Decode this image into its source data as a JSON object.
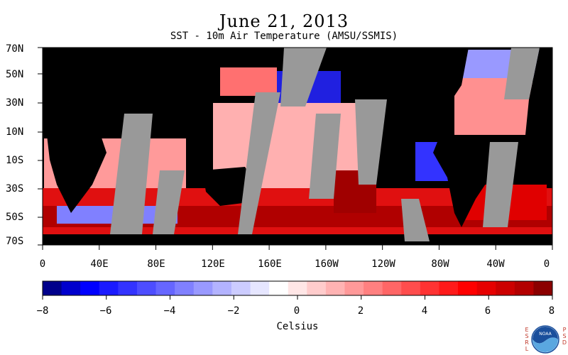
{
  "title": "June 21, 2013",
  "subtitle": "SST - 10m Air Temperature (AMSU/SSMIS)",
  "latitude_labels": [
    "70N",
    "50N",
    "30N",
    "10N",
    "10S",
    "30S",
    "50S",
    "70S"
  ],
  "longitude_labels": [
    "0",
    "40E",
    "80E",
    "120E",
    "160E",
    "160W",
    "120W",
    "80W",
    "40W",
    "0"
  ],
  "colorbar": {
    "tick_labels": [
      "−8",
      "−6",
      "−4",
      "−2",
      "0",
      "2",
      "4",
      "6",
      "8"
    ],
    "min": -8,
    "max": 8,
    "unit_label": "Celsius",
    "colors": [
      "#00008b",
      "#0000cd",
      "#0000ff",
      "#1a1aff",
      "#3333ff",
      "#4d4dff",
      "#6666ff",
      "#8080ff",
      "#9999ff",
      "#b3b3ff",
      "#ccccff",
      "#e6e6ff",
      "#ffffff",
      "#ffe6e6",
      "#ffcccc",
      "#ffb3b3",
      "#ff9999",
      "#ff8080",
      "#ff6666",
      "#ff4d4d",
      "#ff3333",
      "#ff1a1a",
      "#ff0000",
      "#e60000",
      "#cc0000",
      "#b30000",
      "#8b0000"
    ]
  },
  "legend_colors": {
    "land": "#000000",
    "missing": "#999999"
  },
  "logo": {
    "left_text": "ESRL",
    "right_text": "PSD",
    "center_text": "NOAA"
  }
}
